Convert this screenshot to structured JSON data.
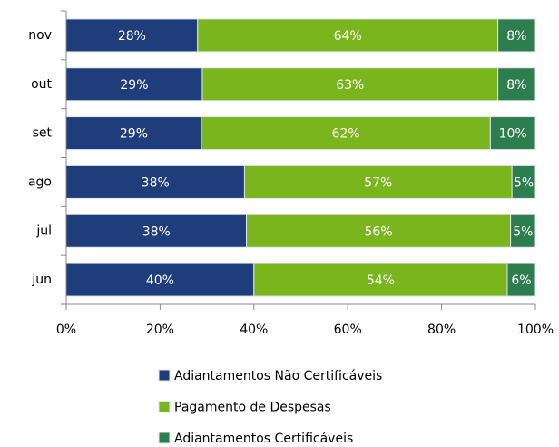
{
  "chart_data": {
    "type": "stacked_barh",
    "categories": [
      "nov",
      "out",
      "set",
      "ago",
      "jul",
      "jun"
    ],
    "series": [
      {
        "name": "Adiantamentos Não Certificáveis",
        "color": "#1f3d7a",
        "values": [
          28,
          29,
          28.8,
          38,
          38.4,
          40
        ],
        "value_labels": [
          "28%",
          "29%",
          "29%",
          "38%",
          "38%",
          "40%"
        ]
      },
      {
        "name": "Pagamento de Despesas",
        "color": "#7ab51d",
        "values": [
          64,
          63,
          61.6,
          57,
          56.3,
          54
        ],
        "value_labels": [
          "64%",
          "63%",
          "62%",
          "57%",
          "56%",
          "54%"
        ]
      },
      {
        "name": "Adiantamentos Certificáveis",
        "color": "#2e7d4f",
        "values": [
          8,
          8,
          9.6,
          5,
          5.3,
          6
        ],
        "value_labels": [
          "8%",
          "8%",
          "10%",
          "5%",
          "5%",
          "6%"
        ]
      }
    ],
    "xlim": [
      0,
      100
    ],
    "xticks": [
      {
        "value": 0,
        "label": "0%"
      },
      {
        "value": 20,
        "label": "20%"
      },
      {
        "value": 40,
        "label": "40%"
      },
      {
        "value": 60,
        "label": "60%"
      },
      {
        "value": 80,
        "label": "80%"
      },
      {
        "value": 100,
        "label": "100%"
      }
    ]
  }
}
